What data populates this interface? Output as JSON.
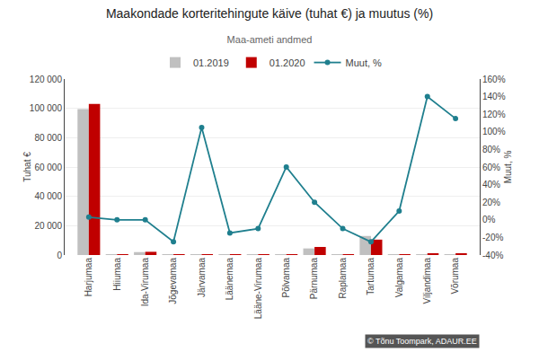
{
  "chart_data": {
    "type": "bar",
    "title": "Maakondade korteritehingute käive (tuhat €) ja muutus (%)",
    "subtitle": "Maa-ameti andmed",
    "ylabel": "Tuhat €",
    "y2label": "Muut, %",
    "categories": [
      "Harjumaa",
      "Hiiumaa",
      "Ida-Virumaa",
      "Jõgevamaa",
      "Järvamaa",
      "Läänemaa",
      "Lääne-Virumaa",
      "Põlvamaa",
      "Pärnumaa",
      "Raplamaa",
      "Tartumaa",
      "Valgamaa",
      "Viljandimaa",
      "Võrumaa"
    ],
    "series": [
      {
        "name": "01.2019",
        "type": "bar",
        "color": "#c0c0c0",
        "values": [
          99500,
          200,
          2000,
          500,
          400,
          600,
          500,
          600,
          4500,
          600,
          13000,
          600,
          400,
          600
        ]
      },
      {
        "name": "01.2020",
        "type": "bar",
        "color": "#c00000",
        "values": [
          103000,
          200,
          2200,
          600,
          400,
          400,
          500,
          600,
          5500,
          500,
          10500,
          600,
          1100,
          700
        ]
      },
      {
        "name": "Muut, %",
        "type": "line",
        "axis": "y2",
        "color": "#1f7f8e",
        "marker": "circle",
        "values": [
          3,
          0,
          0,
          -25,
          105,
          -15,
          -10,
          60,
          20,
          -10,
          -25,
          10,
          140,
          115
        ]
      }
    ],
    "ylim": [
      0,
      120000
    ],
    "yticks": [
      0,
      {
        "value": 20000,
        "label": "20 000"
      },
      {
        "value": 40000,
        "label": "40 000"
      },
      {
        "value": 60000,
        "label": "60 000"
      },
      {
        "value": 80000,
        "label": "80 000"
      },
      {
        "value": 100000,
        "label": "100 000"
      },
      {
        "value": 120000,
        "label": "120 000"
      }
    ],
    "y2lim": [
      -40,
      160
    ],
    "y2ticks": [
      {
        "value": -40,
        "label": "-40%"
      },
      {
        "value": -20,
        "label": "-20%"
      },
      {
        "value": 0,
        "label": "0%"
      },
      {
        "value": 20,
        "label": "20%"
      },
      {
        "value": 40,
        "label": "40%"
      },
      {
        "value": 60,
        "label": "60%"
      },
      {
        "value": 80,
        "label": "80%"
      },
      {
        "value": 100,
        "label": "100%"
      },
      {
        "value": 120,
        "label": "120%"
      },
      {
        "value": 140,
        "label": "140%"
      },
      {
        "value": 160,
        "label": "160%"
      }
    ],
    "grid": true,
    "legend": "top",
    "annotations": [
      {
        "text": "© Tõnu Toompark, ADAUR.EE",
        "color": "#ffffff",
        "bgcolor": "#555555"
      }
    ]
  }
}
